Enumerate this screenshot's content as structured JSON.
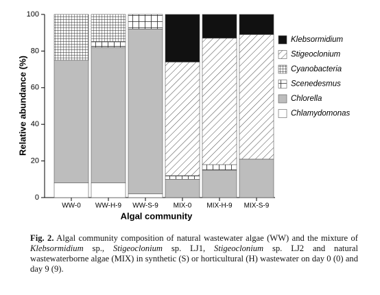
{
  "chart_data": {
    "type": "stacked_bar",
    "categories": [
      "WW-0",
      "WW-H-9",
      "WW-S-9",
      "MIX-0",
      "MIX-H-9",
      "MIX-S-9"
    ],
    "series": [
      {
        "name": "Chlamydomonas",
        "color": "#ffffff",
        "values": [
          8,
          8,
          2,
          0,
          0,
          0
        ]
      },
      {
        "name": "Chlorella",
        "color": "#bdbdbd",
        "values": [
          67,
          74,
          90,
          10,
          15,
          21
        ]
      },
      {
        "name": "Scenedesmus",
        "color": "#ffffff",
        "pattern": "cross",
        "values": [
          0,
          3,
          8,
          2,
          3,
          0
        ]
      },
      {
        "name": "Cyanobacteria",
        "color": "#ffffff",
        "pattern": "grid",
        "values": [
          25,
          15,
          0,
          0,
          0,
          0
        ]
      },
      {
        "name": "Stigeoclonium",
        "color": "#ffffff",
        "pattern": "hatch",
        "values": [
          0,
          0,
          0,
          62,
          69,
          68
        ]
      },
      {
        "name": "Klebsormidium",
        "color": "#111111",
        "values": [
          0,
          0,
          0,
          26,
          13,
          11
        ]
      }
    ],
    "x_label": "Algal community",
    "y_label": "Relative abundance (%)",
    "ylim": [
      0,
      100
    ],
    "yticks": [
      0,
      20,
      40,
      60,
      80,
      100
    ],
    "legend": "right"
  },
  "caption": {
    "label": "Fig. 2.",
    "segments": [
      {
        "text": " Algal community composition of natural wastewater algae (WW) and the mixture of ",
        "italic": false
      },
      {
        "text": "Klebsormidium",
        "italic": true
      },
      {
        "text": " sp., ",
        "italic": false
      },
      {
        "text": "Stigeoclonium",
        "italic": true
      },
      {
        "text": " sp. LJ1, ",
        "italic": false
      },
      {
        "text": "Stigeoclonium",
        "italic": true
      },
      {
        "text": " sp. LJ2 and natural wastewaterborne algae (MIX) in synthetic (S) or horticultural (H) wastewater on day 0 (0) and day 9 (9).",
        "italic": false
      }
    ]
  }
}
